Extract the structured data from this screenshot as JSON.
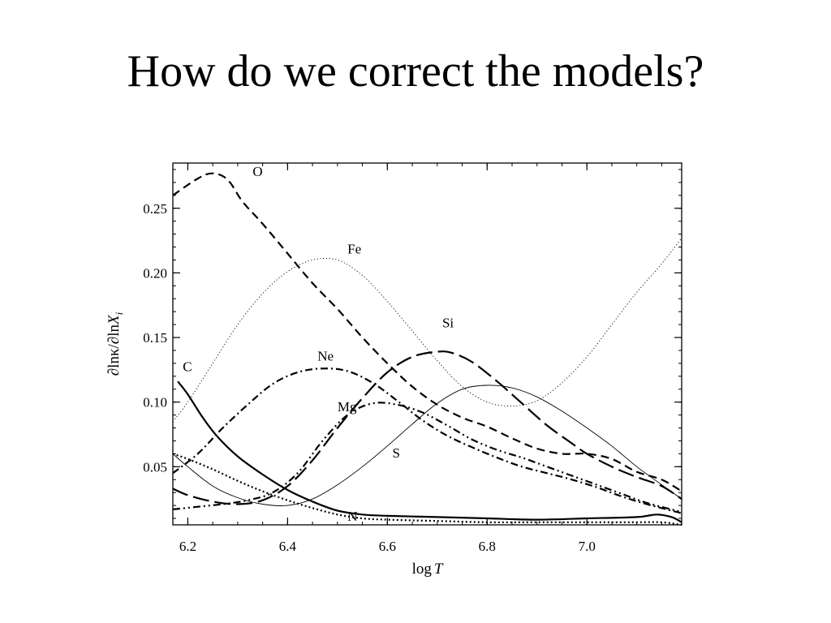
{
  "slide": {
    "title": "How do we correct the models?"
  },
  "chart_data": {
    "type": "line",
    "xlabel_parts": [
      "log",
      "T"
    ],
    "ylabel_parts": [
      "∂lnκ/∂ln",
      "X",
      "i"
    ],
    "xlim": [
      6.17,
      7.19
    ],
    "ylim": [
      0.005,
      0.285
    ],
    "xticks": [
      6.2,
      6.4,
      6.6,
      6.8,
      7.0
    ],
    "xtick_labels": [
      "6.2",
      "6.4",
      "6.6",
      "6.8",
      "7.0"
    ],
    "yticks": [
      0.05,
      0.1,
      0.15,
      0.2,
      0.25
    ],
    "ytick_labels": [
      "0.05",
      "0.10",
      "0.15",
      "0.20",
      "0.25"
    ],
    "grid": false,
    "series": [
      {
        "name": "O",
        "style": "dashed",
        "points": [
          [
            6.17,
            0.26
          ],
          [
            6.22,
            0.273
          ],
          [
            6.25,
            0.277
          ],
          [
            6.28,
            0.272
          ],
          [
            6.31,
            0.255
          ],
          [
            6.35,
            0.238
          ],
          [
            6.4,
            0.215
          ],
          [
            6.45,
            0.192
          ],
          [
            6.5,
            0.172
          ],
          [
            6.55,
            0.15
          ],
          [
            6.6,
            0.13
          ],
          [
            6.65,
            0.112
          ],
          [
            6.7,
            0.098
          ],
          [
            6.75,
            0.088
          ],
          [
            6.8,
            0.081
          ],
          [
            6.85,
            0.072
          ],
          [
            6.9,
            0.064
          ],
          [
            6.95,
            0.06
          ],
          [
            7.0,
            0.06
          ],
          [
            7.05,
            0.056
          ],
          [
            7.1,
            0.046
          ],
          [
            7.15,
            0.04
          ],
          [
            7.19,
            0.031
          ]
        ]
      },
      {
        "name": "Fe",
        "style": "dotted-thin",
        "points": [
          [
            6.17,
            0.085
          ],
          [
            6.2,
            0.1
          ],
          [
            6.25,
            0.13
          ],
          [
            6.3,
            0.16
          ],
          [
            6.35,
            0.184
          ],
          [
            6.4,
            0.201
          ],
          [
            6.45,
            0.21
          ],
          [
            6.5,
            0.21
          ],
          [
            6.55,
            0.198
          ],
          [
            6.6,
            0.178
          ],
          [
            6.65,
            0.155
          ],
          [
            6.7,
            0.132
          ],
          [
            6.75,
            0.112
          ],
          [
            6.8,
            0.1
          ],
          [
            6.85,
            0.097
          ],
          [
            6.9,
            0.101
          ],
          [
            6.95,
            0.115
          ],
          [
            7.0,
            0.135
          ],
          [
            7.05,
            0.16
          ],
          [
            7.1,
            0.185
          ],
          [
            7.15,
            0.207
          ],
          [
            7.19,
            0.227
          ]
        ]
      },
      {
        "name": "Si",
        "style": "long-dashed",
        "points": [
          [
            6.17,
            0.033
          ],
          [
            6.2,
            0.028
          ],
          [
            6.25,
            0.023
          ],
          [
            6.3,
            0.021
          ],
          [
            6.35,
            0.024
          ],
          [
            6.4,
            0.035
          ],
          [
            6.45,
            0.055
          ],
          [
            6.5,
            0.08
          ],
          [
            6.55,
            0.103
          ],
          [
            6.6,
            0.123
          ],
          [
            6.65,
            0.135
          ],
          [
            6.7,
            0.139
          ],
          [
            6.73,
            0.138
          ],
          [
            6.77,
            0.131
          ],
          [
            6.82,
            0.116
          ],
          [
            6.87,
            0.099
          ],
          [
            6.92,
            0.082
          ],
          [
            6.97,
            0.068
          ],
          [
            7.0,
            0.06
          ],
          [
            7.05,
            0.05
          ],
          [
            7.1,
            0.042
          ],
          [
            7.15,
            0.035
          ],
          [
            7.19,
            0.025
          ]
        ]
      },
      {
        "name": "Ne",
        "style": "dash-dot",
        "points": [
          [
            6.17,
            0.045
          ],
          [
            6.22,
            0.06
          ],
          [
            6.27,
            0.08
          ],
          [
            6.32,
            0.098
          ],
          [
            6.37,
            0.114
          ],
          [
            6.42,
            0.123
          ],
          [
            6.47,
            0.126
          ],
          [
            6.52,
            0.124
          ],
          [
            6.57,
            0.115
          ],
          [
            6.62,
            0.101
          ],
          [
            6.67,
            0.086
          ],
          [
            6.72,
            0.074
          ],
          [
            6.77,
            0.065
          ],
          [
            6.82,
            0.057
          ],
          [
            6.87,
            0.05
          ],
          [
            6.92,
            0.045
          ],
          [
            6.97,
            0.04
          ],
          [
            7.02,
            0.034
          ],
          [
            7.07,
            0.027
          ],
          [
            7.12,
            0.021
          ],
          [
            7.19,
            0.014
          ]
        ]
      },
      {
        "name": "Mg",
        "style": "dash-dot-dot",
        "points": [
          [
            6.17,
            0.017
          ],
          [
            6.22,
            0.019
          ],
          [
            6.27,
            0.021
          ],
          [
            6.32,
            0.024
          ],
          [
            6.37,
            0.03
          ],
          [
            6.42,
            0.045
          ],
          [
            6.47,
            0.07
          ],
          [
            6.52,
            0.09
          ],
          [
            6.57,
            0.099
          ],
          [
            6.62,
            0.098
          ],
          [
            6.67,
            0.092
          ],
          [
            6.72,
            0.082
          ],
          [
            6.77,
            0.071
          ],
          [
            6.82,
            0.063
          ],
          [
            6.87,
            0.057
          ],
          [
            6.92,
            0.05
          ],
          [
            6.97,
            0.043
          ],
          [
            7.02,
            0.036
          ],
          [
            7.07,
            0.029
          ],
          [
            7.12,
            0.022
          ],
          [
            7.19,
            0.015
          ]
        ]
      },
      {
        "name": "S",
        "style": "solid-thin",
        "points": [
          [
            6.17,
            0.06
          ],
          [
            6.2,
            0.05
          ],
          [
            6.25,
            0.035
          ],
          [
            6.3,
            0.026
          ],
          [
            6.35,
            0.021
          ],
          [
            6.4,
            0.02
          ],
          [
            6.45,
            0.025
          ],
          [
            6.5,
            0.036
          ],
          [
            6.55,
            0.05
          ],
          [
            6.6,
            0.066
          ],
          [
            6.65,
            0.083
          ],
          [
            6.7,
            0.099
          ],
          [
            6.75,
            0.11
          ],
          [
            6.8,
            0.113
          ],
          [
            6.85,
            0.111
          ],
          [
            6.9,
            0.104
          ],
          [
            6.95,
            0.093
          ],
          [
            7.0,
            0.08
          ],
          [
            7.05,
            0.066
          ],
          [
            7.1,
            0.05
          ],
          [
            7.15,
            0.036
          ],
          [
            7.19,
            0.025
          ]
        ]
      },
      {
        "name": "C",
        "style": "solid-thick",
        "points": [
          [
            6.18,
            0.116
          ],
          [
            6.2,
            0.106
          ],
          [
            6.23,
            0.088
          ],
          [
            6.26,
            0.073
          ],
          [
            6.3,
            0.058
          ],
          [
            6.35,
            0.044
          ],
          [
            6.4,
            0.032
          ],
          [
            6.45,
            0.023
          ],
          [
            6.5,
            0.016
          ],
          [
            6.55,
            0.013
          ],
          [
            6.6,
            0.012
          ],
          [
            6.7,
            0.011
          ],
          [
            6.8,
            0.01
          ],
          [
            6.9,
            0.009
          ],
          [
            7.0,
            0.01
          ],
          [
            7.1,
            0.011
          ],
          [
            7.14,
            0.013
          ],
          [
            7.17,
            0.011
          ],
          [
            7.19,
            0.007
          ]
        ]
      },
      {
        "name": "N",
        "style": "dotted-thick",
        "points": [
          [
            6.17,
            0.06
          ],
          [
            6.2,
            0.056
          ],
          [
            6.25,
            0.048
          ],
          [
            6.3,
            0.039
          ],
          [
            6.35,
            0.031
          ],
          [
            6.4,
            0.024
          ],
          [
            6.45,
            0.018
          ],
          [
            6.5,
            0.013
          ],
          [
            6.55,
            0.01
          ],
          [
            6.6,
            0.009
          ],
          [
            6.7,
            0.008
          ],
          [
            6.8,
            0.007
          ],
          [
            6.9,
            0.007
          ],
          [
            7.0,
            0.007
          ],
          [
            7.1,
            0.007
          ],
          [
            7.15,
            0.007
          ],
          [
            7.19,
            0.005
          ]
        ]
      }
    ],
    "labels": [
      {
        "text": "O",
        "x": 6.33,
        "y": 0.275
      },
      {
        "text": "Fe",
        "x": 6.52,
        "y": 0.215
      },
      {
        "text": "Si",
        "x": 6.71,
        "y": 0.158
      },
      {
        "text": "Ne",
        "x": 6.46,
        "y": 0.132
      },
      {
        "text": "Mg",
        "x": 6.5,
        "y": 0.093
      },
      {
        "text": "S",
        "x": 6.61,
        "y": 0.057
      },
      {
        "text": "C",
        "x": 6.19,
        "y": 0.124
      },
      {
        "text": "N",
        "x": 6.52,
        "y": 0.008
      }
    ]
  }
}
